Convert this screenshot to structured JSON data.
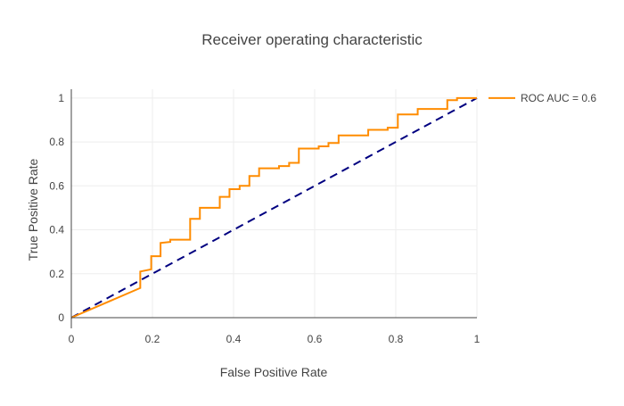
{
  "chart_data": {
    "type": "line",
    "title": "Receiver operating characteristic",
    "xlabel": "False Positive Rate",
    "ylabel": "True Positive Rate",
    "xlim": [
      0,
      1
    ],
    "ylim": [
      0,
      1.04
    ],
    "grid": true,
    "legend_position": "top-right",
    "x_ticks": [
      "0",
      "0.2",
      "0.4",
      "0.6",
      "0.8",
      "1"
    ],
    "y_ticks": [
      "0",
      "0.2",
      "0.4",
      "0.6",
      "0.8",
      "1"
    ],
    "series": [
      {
        "name": "ROC AUC = 0.6",
        "color": "#ff8c00",
        "style": "solid",
        "x": [
          0,
          0.17,
          0.17,
          0.197,
          0.197,
          0.22,
          0.22,
          0.244,
          0.244,
          0.293,
          0.293,
          0.317,
          0.317,
          0.366,
          0.366,
          0.39,
          0.39,
          0.415,
          0.415,
          0.439,
          0.439,
          0.463,
          0.463,
          0.512,
          0.512,
          0.537,
          0.537,
          0.561,
          0.561,
          0.61,
          0.61,
          0.634,
          0.634,
          0.659,
          0.659,
          0.732,
          0.732,
          0.78,
          0.78,
          0.805,
          0.805,
          0.854,
          0.854,
          0.927,
          0.927,
          0.951,
          0.951,
          1.0
        ],
        "y": [
          0,
          0.135,
          0.21,
          0.22,
          0.28,
          0.28,
          0.34,
          0.345,
          0.355,
          0.355,
          0.45,
          0.45,
          0.5,
          0.5,
          0.55,
          0.55,
          0.585,
          0.585,
          0.6,
          0.6,
          0.645,
          0.645,
          0.68,
          0.68,
          0.69,
          0.69,
          0.705,
          0.705,
          0.77,
          0.77,
          0.78,
          0.78,
          0.795,
          0.795,
          0.83,
          0.83,
          0.855,
          0.855,
          0.865,
          0.865,
          0.925,
          0.925,
          0.95,
          0.95,
          0.99,
          0.99,
          1.0,
          1.0
        ]
      },
      {
        "name": "",
        "color": "#000080",
        "style": "dash",
        "x": [
          0,
          1
        ],
        "y": [
          0,
          1
        ]
      }
    ]
  }
}
